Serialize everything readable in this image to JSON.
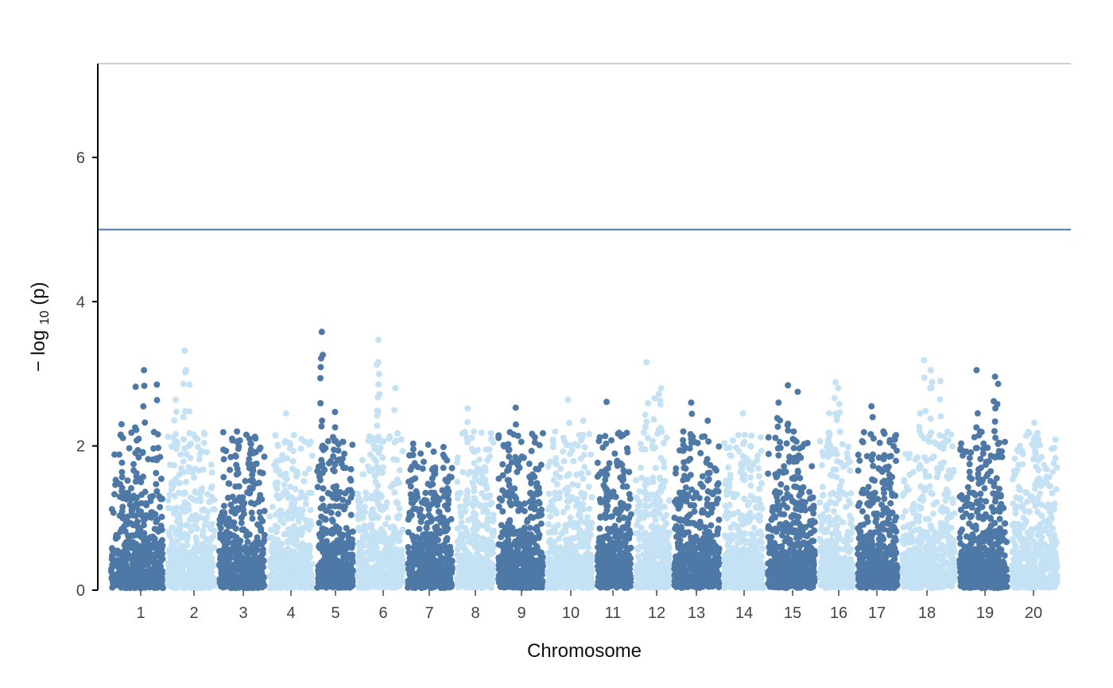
{
  "chart_data": {
    "type": "scatter",
    "title": "",
    "xlabel": "Chromosome",
    "ylabel": "−log₁₀ (p)",
    "ylabel_parts": {
      "prefix": "− log",
      "subscript": "10",
      "suffix": " (p)"
    },
    "ylim": [
      0,
      7.3
    ],
    "yticks": [
      0,
      2,
      4,
      6
    ],
    "grid": false,
    "legend": "none",
    "threshold_line": {
      "y": 5
    },
    "top_line": {
      "y": 7.3
    },
    "colors": {
      "dark": "#4e79a7",
      "light": "#c5e2f5",
      "threshold": "#4e79a7",
      "top_line": "#bfbfbf",
      "axis": "#000000"
    },
    "chromosomes": [
      {
        "label": "1",
        "color": "dark",
        "max_p": 3.05,
        "peaks": [
          2.82,
          3.05,
          2.85,
          2.3
        ]
      },
      {
        "label": "2",
        "color": "light",
        "max_p": 3.32,
        "peaks": [
          3.32,
          2.85,
          2.64,
          2.4
        ]
      },
      {
        "label": "3",
        "color": "dark",
        "max_p": 2.2,
        "peaks": [
          2.2,
          2.1,
          1.9
        ]
      },
      {
        "label": "4",
        "color": "light",
        "max_p": 2.45,
        "peaks": [
          2.45,
          2.15,
          2.0
        ]
      },
      {
        "label": "5",
        "color": "dark",
        "max_p": 3.58,
        "peaks": [
          3.58,
          2.47,
          2.35
        ]
      },
      {
        "label": "6",
        "color": "light",
        "max_p": 3.47,
        "peaks": [
          3.47,
          3.16,
          2.8,
          2.42
        ]
      },
      {
        "label": "7",
        "color": "dark",
        "max_p": 2.03,
        "peaks": [
          2.03,
          1.92,
          1.8
        ]
      },
      {
        "label": "8",
        "color": "light",
        "max_p": 2.52,
        "peaks": [
          2.52,
          2.2,
          1.95
        ]
      },
      {
        "label": "9",
        "color": "dark",
        "max_p": 2.53,
        "peaks": [
          2.53,
          1.93,
          1.85
        ]
      },
      {
        "label": "10",
        "color": "light",
        "max_p": 2.64,
        "peaks": [
          2.64,
          2.35,
          2.2
        ]
      },
      {
        "label": "11",
        "color": "dark",
        "max_p": 2.61,
        "peaks": [
          2.61,
          2.15,
          1.6
        ]
      },
      {
        "label": "12",
        "color": "light",
        "max_p": 3.16,
        "peaks": [
          3.16,
          2.8,
          2.72,
          2.66
        ]
      },
      {
        "label": "13",
        "color": "dark",
        "max_p": 2.6,
        "peaks": [
          2.6,
          2.35,
          2.2
        ]
      },
      {
        "label": "14",
        "color": "light",
        "max_p": 2.45,
        "peaks": [
          2.45,
          2.0,
          1.7
        ]
      },
      {
        "label": "15",
        "color": "dark",
        "max_p": 2.84,
        "peaks": [
          2.84,
          2.75,
          2.6,
          2.2
        ]
      },
      {
        "label": "16",
        "color": "light",
        "max_p": 2.88,
        "peaks": [
          2.88,
          2.8,
          2.45
        ]
      },
      {
        "label": "17",
        "color": "dark",
        "max_p": 2.55,
        "peaks": [
          2.55,
          2.2,
          2.05
        ]
      },
      {
        "label": "18",
        "color": "light",
        "max_p": 3.19,
        "peaks": [
          3.19,
          3.05,
          2.9,
          2.45
        ]
      },
      {
        "label": "19",
        "color": "dark",
        "max_p": 3.05,
        "peaks": [
          3.05,
          2.96,
          2.86,
          2.2
        ]
      },
      {
        "label": "20",
        "color": "light",
        "max_p": 2.32,
        "peaks": [
          2.32,
          2.1,
          1.95
        ]
      }
    ]
  }
}
